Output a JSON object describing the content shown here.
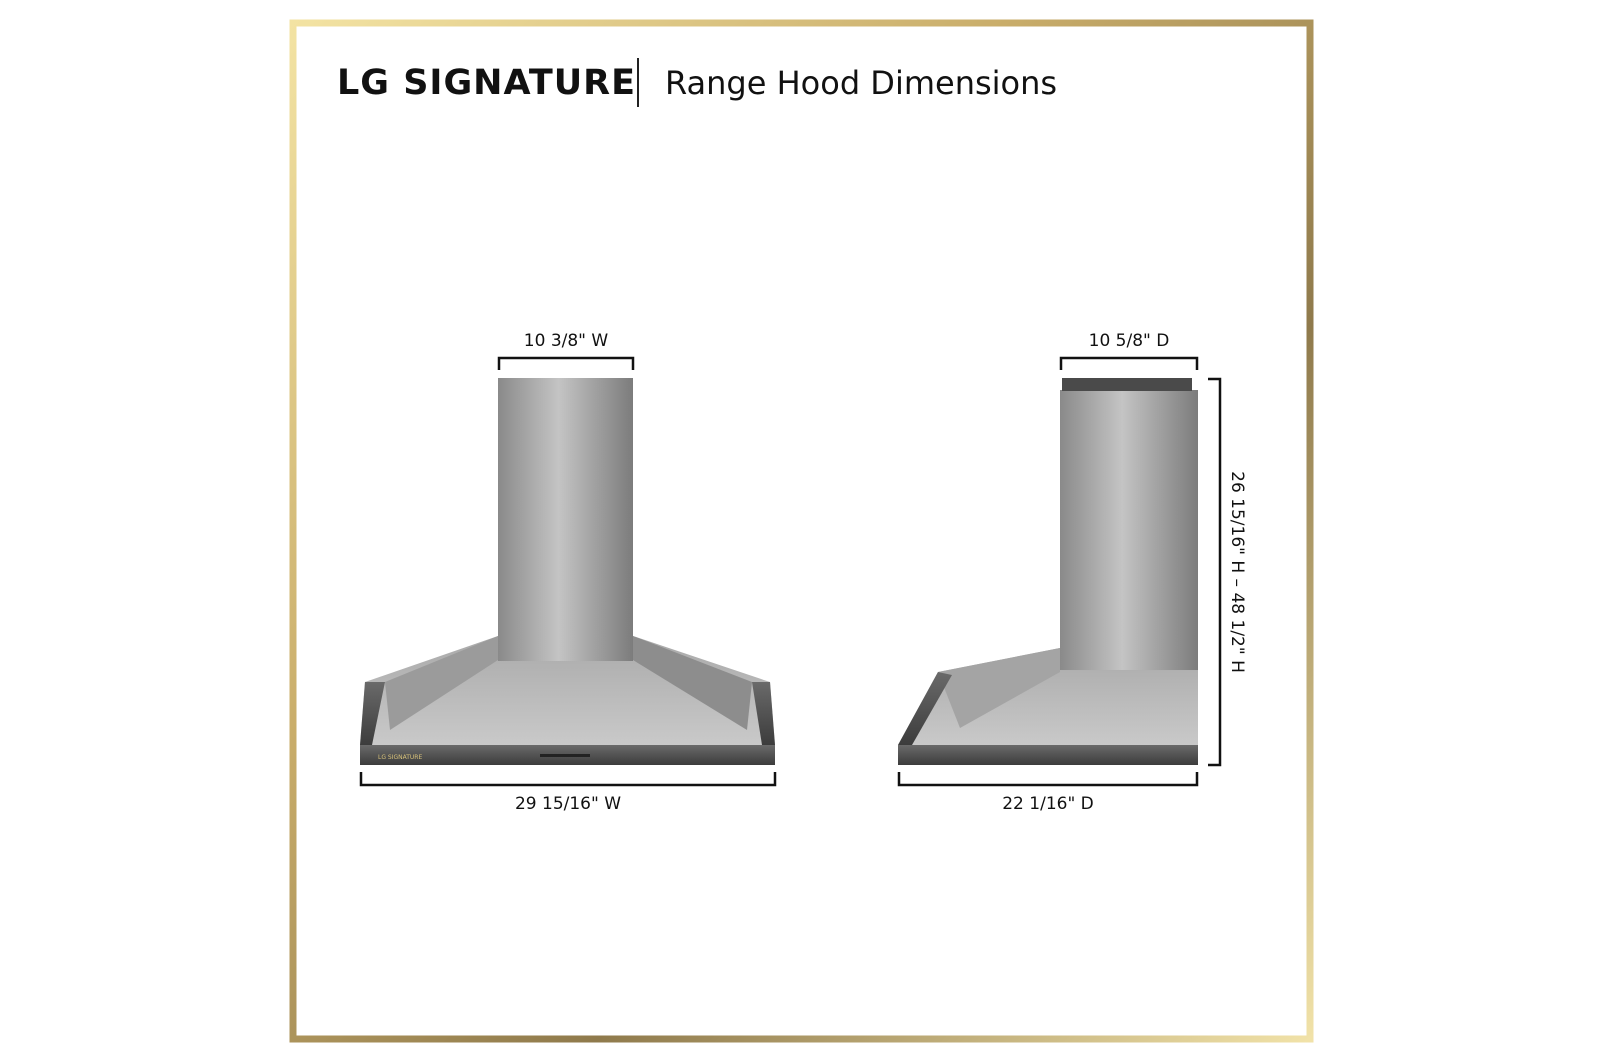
{
  "header": {
    "brand": "LG SIGNATURE",
    "title": "Range Hood Dimensions"
  },
  "front_view": {
    "badge": "LG SIGNATURE",
    "chimney_width": "10 3/8\" W",
    "overall_width": "29 15/16\" W"
  },
  "side_view": {
    "chimney_depth": "10 5/8\" D",
    "overall_depth": "22 1/16\" D",
    "height": "26 15/16\" H – 48 1/2\" H"
  }
}
